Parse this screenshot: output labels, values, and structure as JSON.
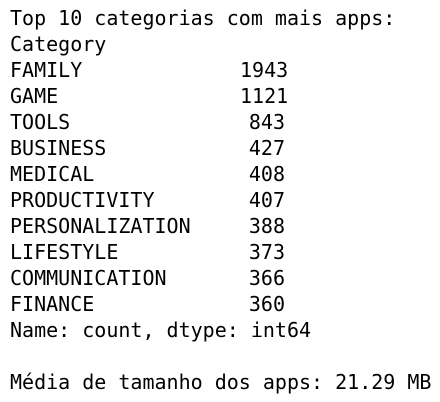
{
  "output": {
    "header": "Top 10 categorias com mais apps:",
    "index_name": "Category",
    "rows": [
      {
        "category": "FAMILY",
        "count": 1943
      },
      {
        "category": "GAME",
        "count": 1121
      },
      {
        "category": "TOOLS",
        "count": 843
      },
      {
        "category": "BUSINESS",
        "count": 427
      },
      {
        "category": "MEDICAL",
        "count": 408
      },
      {
        "category": "PRODUCTIVITY",
        "count": 407
      },
      {
        "category": "PERSONALIZATION",
        "count": 388
      },
      {
        "category": "LIFESTYLE",
        "count": 373
      },
      {
        "category": "COMMUNICATION",
        "count": 366
      },
      {
        "category": "FINANCE",
        "count": 360
      }
    ],
    "footer": "Name: count, dtype: int64",
    "summary": "Média de tamanho dos apps: 21.29 MB"
  }
}
